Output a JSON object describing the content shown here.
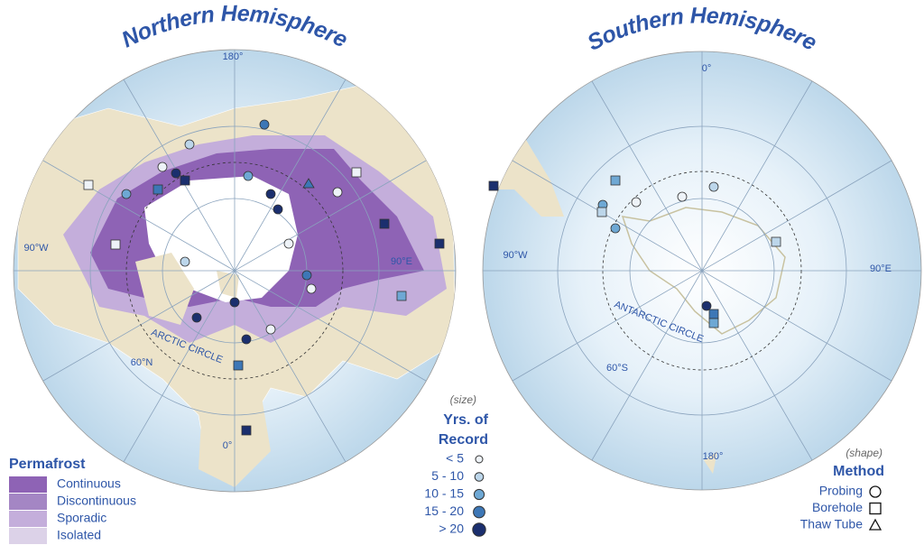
{
  "maps": [
    {
      "title": "Northern Hemisphere",
      "labels": {
        "top": "180°",
        "left": "90°W",
        "right": "90°E",
        "latitude": "60°N",
        "bottom": "0°",
        "circle": "ARCTIC CIRCLE"
      }
    },
    {
      "title": "Southern Hemisphere",
      "labels": {
        "top": "0°",
        "left": "90°W",
        "right": "90°E",
        "latitude": "60°S",
        "bottom": "180°",
        "circle": "ANTARCTIC CIRCLE"
      }
    }
  ],
  "permafrost_legend": {
    "title": "Permafrost",
    "items": [
      {
        "label": "Continuous",
        "color": "#8e63b5"
      },
      {
        "label": "Discontinuous",
        "color": "#a486c4"
      },
      {
        "label": "Sporadic",
        "color": "#c4aedb"
      },
      {
        "label": "Isolated",
        "color": "#dcd2e8"
      }
    ]
  },
  "record_legend": {
    "note": "(size)",
    "title": [
      "Yrs. of",
      "Record"
    ],
    "items": [
      {
        "label": "< 5",
        "color": "#eef3f8"
      },
      {
        "label": "5 - 10",
        "color": "#bcd6ea"
      },
      {
        "label": "10 - 15",
        "color": "#6ea8d4"
      },
      {
        "label": "15 - 20",
        "color": "#3d77b6"
      },
      {
        "label": "> 20",
        "color": "#1b2f6e"
      }
    ]
  },
  "method_legend": {
    "note": "(shape)",
    "title": "Method",
    "items": [
      {
        "label": "Probing",
        "shape": "circle"
      },
      {
        "label": "Borehole",
        "shape": "square"
      },
      {
        "label": "Thaw Tube",
        "shape": "triangle"
      }
    ]
  }
}
